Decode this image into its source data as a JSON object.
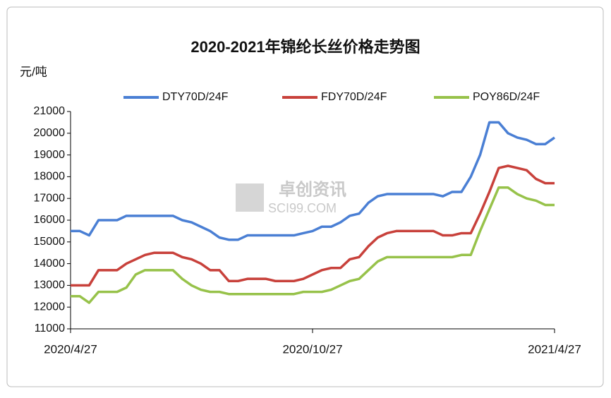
{
  "chart_data": {
    "type": "line",
    "title": "2020-2021年锦纶长丝价格走势图",
    "y_unit": "元/吨",
    "watermark": [
      "卓创资讯",
      "SCI99.COM"
    ],
    "categories": [
      "2020/4/27",
      null,
      null,
      null,
      null,
      null,
      null,
      null,
      null,
      null,
      null,
      null,
      null,
      null,
      null,
      null,
      null,
      null,
      null,
      null,
      null,
      null,
      null,
      null,
      null,
      null,
      "2020/10/27",
      null,
      null,
      null,
      null,
      null,
      null,
      null,
      null,
      null,
      null,
      null,
      null,
      null,
      null,
      null,
      null,
      null,
      null,
      null,
      null,
      null,
      null,
      null,
      null,
      null,
      "2021/4/27"
    ],
    "series": [
      {
        "name": "DTY70D/24F",
        "color": "#4a7fd4",
        "values": [
          15500,
          15500,
          15300,
          16000,
          16000,
          16000,
          16200,
          16200,
          16200,
          16200,
          16200,
          16200,
          16000,
          15900,
          15700,
          15500,
          15200,
          15100,
          15100,
          15300,
          15300,
          15300,
          15300,
          15300,
          15300,
          15400,
          15500,
          15700,
          15700,
          15900,
          16200,
          16300,
          16800,
          17100,
          17200,
          17200,
          17200,
          17200,
          17200,
          17200,
          17100,
          17300,
          17300,
          18000,
          19000,
          20500,
          20500,
          20000,
          19800,
          19700,
          19500,
          19500,
          19800
        ]
      },
      {
        "name": "FDY70D/24F",
        "color": "#c8413b",
        "values": [
          13000,
          13000,
          13000,
          13700,
          13700,
          13700,
          14000,
          14200,
          14400,
          14500,
          14500,
          14500,
          14300,
          14200,
          14000,
          13700,
          13700,
          13200,
          13200,
          13300,
          13300,
          13300,
          13200,
          13200,
          13200,
          13300,
          13500,
          13700,
          13800,
          13800,
          14200,
          14300,
          14800,
          15200,
          15400,
          15500,
          15500,
          15500,
          15500,
          15500,
          15300,
          15300,
          15400,
          15400,
          16300,
          17300,
          18400,
          18500,
          18400,
          18300,
          17900,
          17700,
          17700
        ]
      },
      {
        "name": "POY86D/24F",
        "color": "#97c24a",
        "values": [
          12500,
          12500,
          12200,
          12700,
          12700,
          12700,
          12900,
          13500,
          13700,
          13700,
          13700,
          13700,
          13300,
          13000,
          12800,
          12700,
          12700,
          12600,
          12600,
          12600,
          12600,
          12600,
          12600,
          12600,
          12600,
          12700,
          12700,
          12700,
          12800,
          13000,
          13200,
          13300,
          13700,
          14100,
          14300,
          14300,
          14300,
          14300,
          14300,
          14300,
          14300,
          14300,
          14400,
          14400,
          15500,
          16500,
          17500,
          17500,
          17200,
          17000,
          16900,
          16700,
          16700
        ]
      }
    ],
    "ylim": [
      11000,
      21000
    ],
    "yticks": [
      11000,
      12000,
      13000,
      14000,
      15000,
      16000,
      17000,
      18000,
      19000,
      20000,
      21000
    ],
    "grid": false,
    "legend": "top"
  }
}
